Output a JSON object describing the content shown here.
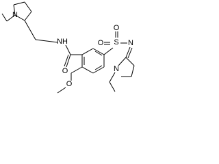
{
  "molecule": {
    "atoms": [
      {
        "label": "N"
      },
      {
        "label": "NH"
      },
      {
        "label": "O"
      },
      {
        "label": "S"
      },
      {
        "label": "O"
      },
      {
        "label": "O"
      },
      {
        "label": "N"
      },
      {
        "label": "N"
      },
      {
        "label": "O"
      }
    ]
  }
}
